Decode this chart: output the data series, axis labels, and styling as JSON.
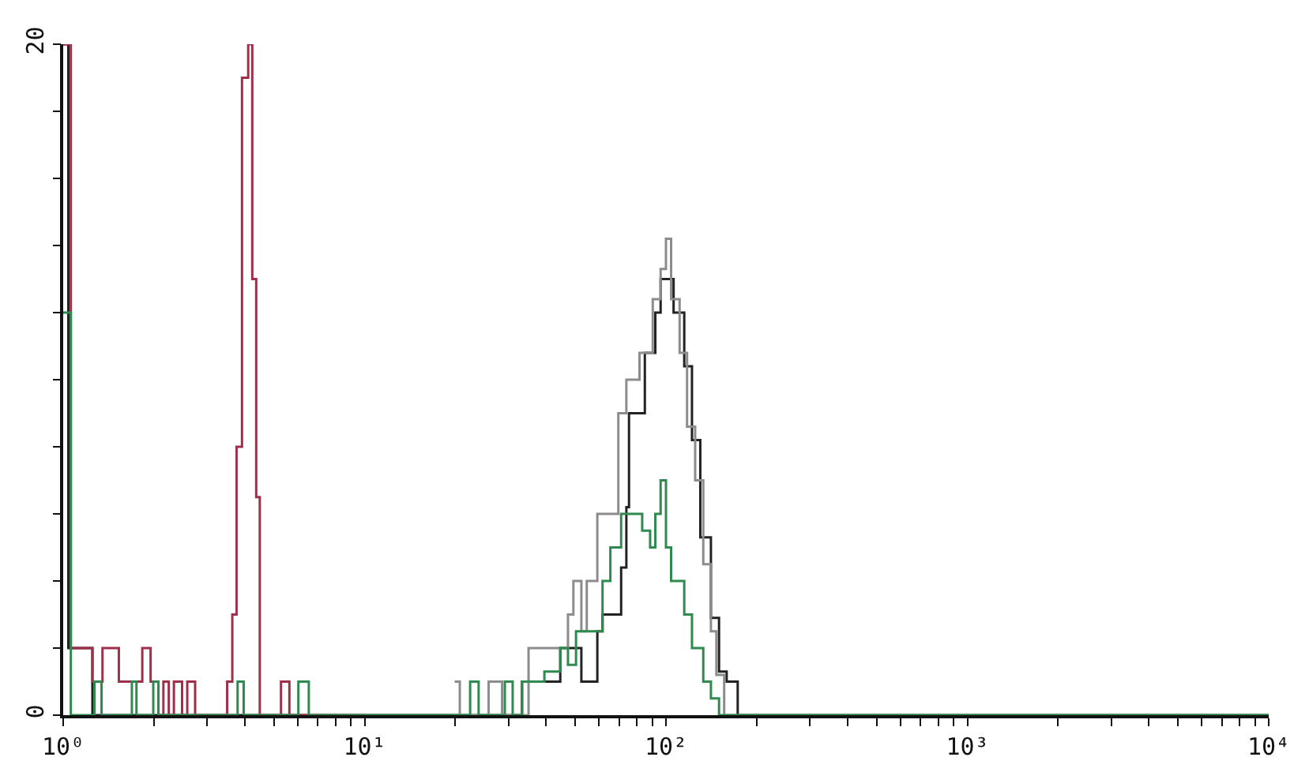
{
  "chart_data": {
    "type": "step",
    "log": "x",
    "grid": false,
    "marker": "none",
    "line_style": "solid",
    "xlim": [
      1,
      10000
    ],
    "xticks": [
      {
        "value": 1,
        "label": "10⁰"
      },
      {
        "value": 2,
        "label": null
      },
      {
        "value": 3,
        "label": null
      },
      {
        "value": 4,
        "label": null
      },
      {
        "value": 5,
        "label": null
      },
      {
        "value": 6,
        "label": null
      },
      {
        "value": 7,
        "label": null
      },
      {
        "value": 8,
        "label": null
      },
      {
        "value": 9,
        "label": null
      },
      {
        "value": 10,
        "label": "10¹"
      },
      {
        "value": 20,
        "label": null
      },
      {
        "value": 30,
        "label": null
      },
      {
        "value": 40,
        "label": null
      },
      {
        "value": 50,
        "label": null
      },
      {
        "value": 60,
        "label": null
      },
      {
        "value": 70,
        "label": null
      },
      {
        "value": 80,
        "label": null
      },
      {
        "value": 90,
        "label": null
      },
      {
        "value": 100,
        "label": "10²"
      },
      {
        "value": 200,
        "label": null
      },
      {
        "value": 300,
        "label": null
      },
      {
        "value": 400,
        "label": null
      },
      {
        "value": 500,
        "label": null
      },
      {
        "value": 600,
        "label": null
      },
      {
        "value": 700,
        "label": null
      },
      {
        "value": 800,
        "label": null
      },
      {
        "value": 900,
        "label": null
      },
      {
        "value": 1000,
        "label": "10³"
      },
      {
        "value": 2000,
        "label": null
      },
      {
        "value": 3000,
        "label": null
      },
      {
        "value": 4000,
        "label": null
      },
      {
        "value": 5000,
        "label": null
      },
      {
        "value": 6000,
        "label": null
      },
      {
        "value": 7000,
        "label": null
      },
      {
        "value": 8000,
        "label": null
      },
      {
        "value": 9000,
        "label": null
      },
      {
        "value": 10000,
        "label": "10⁴"
      }
    ],
    "ylim": [
      0,
      20
    ],
    "yticks": [
      0,
      {
        "value": 2,
        "label": null
      },
      {
        "value": 4,
        "label": null
      },
      {
        "value": 6,
        "label": null
      },
      {
        "value": 8,
        "label": null
      },
      {
        "value": 10,
        "label": null
      },
      {
        "value": 12,
        "label": null
      },
      {
        "value": 14,
        "label": null
      },
      {
        "value": 16,
        "label": null
      },
      {
        "value": 18,
        "label": null
      },
      20
    ],
    "series": [
      {
        "color": "#222222",
        "x": [
          1.0,
          1.04,
          1.25,
          22.4,
          33.3,
          44.6,
          52.4,
          59.2,
          61.6,
          71.0,
          73.9,
          75.4,
          85.1,
          92.2,
          96.0,
          106,
          115,
          122,
          130,
          141,
          150,
          159,
          173,
          10000
        ],
        "values": [
          20,
          2,
          0,
          0,
          1,
          2,
          1,
          2.5,
          3,
          4.4,
          6.2,
          9,
          10.8,
          12,
          13,
          12,
          10.4,
          8.2,
          5.3,
          2.9,
          1.3,
          1,
          0,
          0
        ]
      },
      {
        "color": "#8c8c8c",
        "x": [
          19.9,
          20.7,
          25.8,
          28.6,
          35.0,
          41.1,
          47.3,
          49.3,
          52.4,
          54.6,
          59.2,
          69.5,
          73.9,
          81.7,
          90.4,
          96.0,
          100,
          104,
          111,
          117.5,
          125,
          133,
          141,
          147,
          156,
          10000
        ],
        "values": [
          1,
          0,
          1,
          0,
          2,
          2,
          3,
          4,
          2.5,
          4,
          6,
          9,
          10,
          10.8,
          12.4,
          13.3,
          14.2,
          12.4,
          10.8,
          8.6,
          7,
          4.5,
          2.5,
          1.2,
          0,
          0
        ]
      },
      {
        "color": "#a0304a",
        "x": [
          1.0,
          1.06,
          1.25,
          1.35,
          1.53,
          1.83,
          1.95,
          2.07,
          2.15,
          2.24,
          2.33,
          2.48,
          2.58,
          2.74,
          3.5,
          3.64,
          3.76,
          3.92,
          4.11,
          4.24,
          4.37,
          4.49,
          5.28,
          5.63,
          10
        ],
        "values": [
          20,
          2,
          1,
          2,
          1,
          2,
          1,
          0,
          1,
          0,
          1,
          0,
          1,
          0,
          1,
          3,
          8,
          19,
          20,
          13,
          6.5,
          0,
          1,
          0,
          0
        ]
      },
      {
        "color": "#2e8a4e",
        "x": [
          1.0,
          1.06,
          1.27,
          1.34,
          1.69,
          1.75,
          1.99,
          2.07,
          3.79,
          3.97,
          6.03,
          6.53,
          22.4,
          23.9,
          29.2,
          31.0,
          33.3,
          39.5,
          44.6,
          47.3,
          50.3,
          61.6,
          65.4,
          71.0,
          83.4,
          88.6,
          92.2,
          96.0,
          100,
          104,
          115,
          122,
          133,
          141,
          150,
          10000
        ],
        "values": [
          12,
          0,
          1,
          0,
          1,
          0,
          1,
          0,
          1,
          0,
          1,
          0,
          1,
          0,
          1,
          0,
          1,
          1.3,
          2,
          1.5,
          2.5,
          4,
          5,
          6,
          5.5,
          5,
          6,
          7,
          5,
          4,
          3,
          2,
          1,
          0.5,
          0,
          0
        ]
      }
    ]
  }
}
